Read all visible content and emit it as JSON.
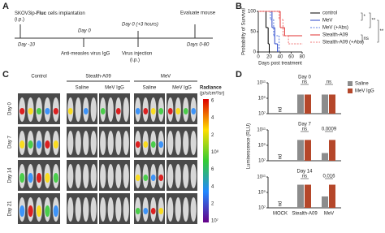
{
  "panel_a": {
    "label": "A",
    "implant_pre": "SKOV3ip-",
    "implant_bold": "Fluc",
    "implant_post": " cells implantation",
    "implant_route": "(i.p.)",
    "day_m10": "Day -10",
    "day_0": "Day 0",
    "igg": "Anti-measles virus IgG",
    "day_0_3h": "Day 0 (+3 hours)",
    "virus": "Virus injection",
    "virus_route": "(i.p.)",
    "evaluate": "Evaluate mouse",
    "days_0_80": "Days 0-80"
  },
  "panel_c": {
    "label": "C",
    "groups": [
      "Control",
      "Stealth-A09",
      "MeV"
    ],
    "subgroups": [
      "Saline",
      "MeV IgG",
      "Saline",
      "MeV IgG"
    ],
    "rows": [
      "Day 0",
      "Day 7",
      "Day 14",
      "Day 21"
    ],
    "colorbar_title": "Radiance",
    "colorbar_unit": "(p/s/cm²/sr)",
    "colorbar_labels": [
      "6",
      "4",
      "2",
      "10⁸",
      "6",
      "4",
      "2",
      "10⁷"
    ]
  },
  "panel_d_label": "D",
  "panel_b_label": "B",
  "chart_data": [
    {
      "type": "step",
      "xlabel": "Days post treatment",
      "ylabel": "Probability of Survival",
      "xlim": [
        0,
        80
      ],
      "ylim": [
        0,
        100
      ],
      "xticks": [
        0,
        20,
        40,
        60,
        80
      ],
      "yticks": [
        0,
        50,
        100
      ],
      "series": [
        {
          "name": "control",
          "color": "#000000",
          "dashed": false,
          "x": [
            0,
            14,
            18,
            20
          ],
          "values": [
            100,
            60,
            20,
            0
          ]
        },
        {
          "name": "MeV",
          "color": "#2a44c8",
          "dashed": false,
          "x": [
            0,
            25,
            30,
            35
          ],
          "values": [
            100,
            60,
            20,
            0
          ]
        },
        {
          "name": "MeV (+Abs)",
          "color": "#5b7be0",
          "dashed": true,
          "x": [
            0,
            22,
            28,
            38
          ],
          "values": [
            100,
            80,
            40,
            0
          ]
        },
        {
          "name": "Stealth-A09",
          "color": "#e03131",
          "dashed": false,
          "x": [
            0,
            40,
            48,
            80
          ],
          "values": [
            100,
            60,
            40,
            40
          ]
        },
        {
          "name": "Stealth-A09 (+Abs)",
          "color": "#f07a7a",
          "dashed": true,
          "x": [
            0,
            38,
            45,
            55,
            80
          ],
          "values": [
            100,
            80,
            40,
            20,
            20
          ]
        }
      ],
      "significance": [
        "*",
        "**",
        "**",
        "ns"
      ]
    },
    {
      "type": "bar",
      "title": "Day 0",
      "log": true,
      "ylabel": "Luminescence (RLU)",
      "categories": [
        null,
        null,
        null
      ],
      "ylim": [
        10000000,
        100000000000
      ],
      "yticks": [
        {
          "value": 10000000,
          "label": "10⁷"
        },
        {
          "value": 1000000000,
          "label": "10⁹"
        },
        {
          "value": 100000000000,
          "label": "10¹¹"
        }
      ],
      "series": [
        {
          "name": "Saline",
          "color": "#8c8c8c",
          "values": [
            null,
            3000000000,
            3000000000
          ]
        },
        {
          "name": "MeV IgG",
          "color": "#b5472a",
          "values": [
            null,
            3000000000,
            3000000000
          ]
        }
      ],
      "nd": "nd",
      "comparisons": [
        "ns",
        "ns"
      ]
    },
    {
      "type": "bar",
      "title": "Day 7",
      "log": true,
      "categories": [
        null,
        null,
        null
      ],
      "ylim": [
        10000000,
        100000000000
      ],
      "yticks": [
        {
          "value": 10000000,
          "label": "10⁷"
        },
        {
          "value": 1000000000,
          "label": "10⁹"
        },
        {
          "value": 100000000000,
          "label": "10¹¹"
        }
      ],
      "series": [
        {
          "name": "Saline",
          "color": "#8c8c8c",
          "values": [
            null,
            5000000000,
            100000000
          ]
        },
        {
          "name": "MeV IgG",
          "color": "#b5472a",
          "values": [
            null,
            5000000000,
            5000000000
          ]
        }
      ],
      "nd": "nd",
      "comparisons": [
        "ns",
        "0.0009"
      ]
    },
    {
      "type": "bar",
      "title": "Day 14",
      "log": true,
      "categories": [
        "MOCK",
        "Stealth-A09",
        "MeV"
      ],
      "ylim": [
        10000000,
        100000000000
      ],
      "yticks": [
        {
          "value": 10000000,
          "label": "10⁷"
        },
        {
          "value": 1000000000,
          "label": "10⁹"
        },
        {
          "value": 100000000000,
          "label": "10¹¹"
        }
      ],
      "series": [
        {
          "name": "Saline",
          "color": "#8c8c8c",
          "values": [
            null,
            10000000000,
            300000000
          ]
        },
        {
          "name": "MeV IgG",
          "color": "#b5472a",
          "values": [
            null,
            10000000000,
            10000000000
          ]
        }
      ],
      "nd": "nd",
      "comparisons": [
        "ns",
        "0.016"
      ]
    }
  ]
}
